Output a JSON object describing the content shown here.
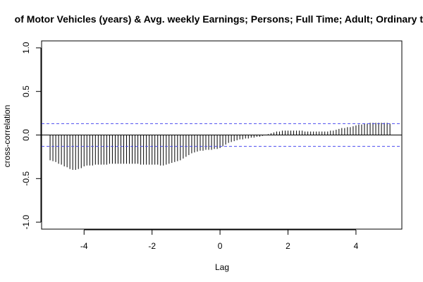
{
  "chart_data": {
    "type": "bar",
    "title": "of Motor Vehicles (years) & Avg. weekly Earnings; Persons; Full Time; Adult; Ordinary tir",
    "xlabel": "Lag",
    "ylabel": "cross-correlation",
    "xlim": [
      -5.25,
      5.35
    ],
    "ylim": [
      -1.08,
      1.08
    ],
    "xticks": [
      -4,
      -2,
      0,
      2,
      4
    ],
    "xtick_labels": [
      "-4",
      "-2",
      "0",
      "2",
      "4"
    ],
    "yticks": [
      -1.0,
      -0.5,
      0.0,
      0.5,
      1.0
    ],
    "ytick_labels": [
      "-1.0",
      "-0.5",
      "0.0",
      "0.5",
      "1.0"
    ],
    "confidence_band": [
      -0.13,
      0.13
    ],
    "colors": {
      "spikes": "#000000",
      "confidence": "#4a4aee",
      "frame": "#000000"
    },
    "grid": false,
    "legend": "none",
    "series": [
      {
        "lags": [
          -5.0,
          -4.917,
          -4.833,
          -4.75,
          -4.667,
          -4.583,
          -4.5,
          -4.417,
          -4.333,
          -4.25,
          -4.167,
          -4.083,
          -4.0,
          -3.917,
          -3.833,
          -3.75,
          -3.667,
          -3.583,
          -3.5,
          -3.417,
          -3.333,
          -3.25,
          -3.167,
          -3.083,
          -3.0,
          -2.917,
          -2.833,
          -2.75,
          -2.667,
          -2.583,
          -2.5,
          -2.417,
          -2.333,
          -2.25,
          -2.167,
          -2.083,
          -2.0,
          -1.917,
          -1.833,
          -1.75,
          -1.667,
          -1.583,
          -1.5,
          -1.417,
          -1.333,
          -1.25,
          -1.167,
          -1.083,
          -1.0,
          -0.917,
          -0.833,
          -0.75,
          -0.667,
          -0.583,
          -0.5,
          -0.417,
          -0.333,
          -0.25,
          -0.167,
          -0.083,
          0.0,
          0.083,
          0.167,
          0.25,
          0.333,
          0.417,
          0.5,
          0.583,
          0.667,
          0.75,
          0.833,
          0.917,
          1.0,
          1.083,
          1.167,
          1.25,
          1.333,
          1.417,
          1.5,
          1.583,
          1.667,
          1.75,
          1.833,
          1.917,
          2.0,
          2.083,
          2.167,
          2.25,
          2.333,
          2.417,
          2.5,
          2.583,
          2.667,
          2.75,
          2.833,
          2.917,
          3.0,
          3.083,
          3.167,
          3.25,
          3.333,
          3.417,
          3.5,
          3.583,
          3.667,
          3.75,
          3.833,
          3.917,
          4.0,
          4.083,
          4.167,
          4.25,
          4.333,
          4.417,
          4.5,
          4.583,
          4.667,
          4.75,
          4.833,
          4.917,
          5.0
        ],
        "values": [
          -0.29,
          -0.3,
          -0.31,
          -0.33,
          -0.34,
          -0.36,
          -0.37,
          -0.39,
          -0.4,
          -0.4,
          -0.39,
          -0.38,
          -0.36,
          -0.35,
          -0.35,
          -0.35,
          -0.34,
          -0.34,
          -0.34,
          -0.34,
          -0.34,
          -0.33,
          -0.33,
          -0.33,
          -0.33,
          -0.33,
          -0.33,
          -0.33,
          -0.33,
          -0.33,
          -0.33,
          -0.33,
          -0.34,
          -0.34,
          -0.34,
          -0.34,
          -0.34,
          -0.34,
          -0.34,
          -0.35,
          -0.35,
          -0.34,
          -0.33,
          -0.32,
          -0.31,
          -0.3,
          -0.29,
          -0.27,
          -0.25,
          -0.23,
          -0.21,
          -0.2,
          -0.19,
          -0.18,
          -0.18,
          -0.17,
          -0.17,
          -0.17,
          -0.16,
          -0.16,
          -0.15,
          -0.13,
          -0.11,
          -0.09,
          -0.08,
          -0.07,
          -0.06,
          -0.05,
          -0.05,
          -0.04,
          -0.04,
          -0.03,
          -0.03,
          -0.02,
          -0.02,
          -0.01,
          0.0,
          0.01,
          0.02,
          0.03,
          0.04,
          0.04,
          0.05,
          0.05,
          0.05,
          0.05,
          0.05,
          0.05,
          0.05,
          0.05,
          0.04,
          0.04,
          0.04,
          0.04,
          0.04,
          0.04,
          0.04,
          0.04,
          0.04,
          0.05,
          0.05,
          0.06,
          0.07,
          0.08,
          0.08,
          0.09,
          0.09,
          0.1,
          0.11,
          0.12,
          0.12,
          0.13,
          0.13,
          0.14,
          0.14,
          0.14,
          0.14,
          0.14,
          0.14,
          0.14,
          0.13
        ]
      }
    ]
  }
}
